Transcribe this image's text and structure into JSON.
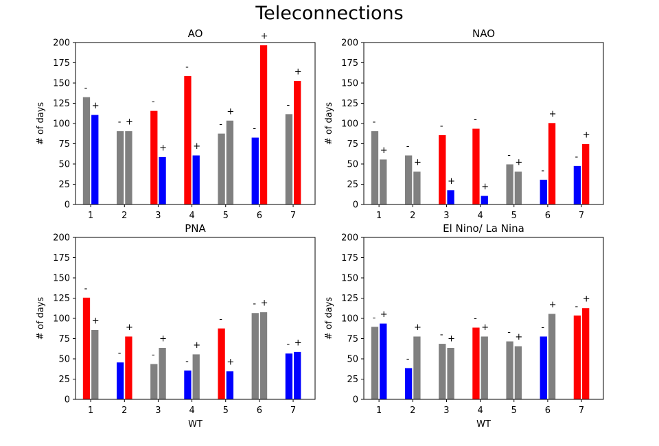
{
  "figure": {
    "title": "Teleconnections"
  },
  "colors": {
    "negative_phase": "#ff0000",
    "positive_phase": "#0000ff",
    "neutral": "#808080"
  },
  "chart_data": [
    {
      "type": "bar",
      "title": "AO",
      "xlabel": "",
      "ylabel": "# of days",
      "ylim": [
        0,
        200
      ],
      "yticks": [
        0,
        25,
        50,
        75,
        100,
        125,
        150,
        175,
        200
      ],
      "categories": [
        "1",
        "2",
        "3",
        "4",
        "5",
        "6",
        "7"
      ],
      "series": [
        {
          "values": [
            133,
            91,
            116,
            159,
            88,
            83,
            112
          ],
          "colors": [
            "gray",
            "gray",
            "red",
            "red",
            "gray",
            "blue",
            "gray"
          ],
          "labels": [
            "-",
            "-",
            "-",
            "-",
            "-",
            "-",
            "-"
          ]
        },
        {
          "values": [
            111,
            91,
            59,
            61,
            104,
            197,
            153
          ],
          "colors": [
            "blue",
            "gray",
            "blue",
            "blue",
            "gray",
            "red",
            "red"
          ],
          "labels": [
            "+",
            "+",
            "+",
            "+",
            "+",
            "+",
            "+"
          ]
        }
      ],
      "grid": false
    },
    {
      "type": "bar",
      "title": "NAO",
      "xlabel": "",
      "ylabel": "# of days",
      "ylim": [
        0,
        200
      ],
      "yticks": [
        0,
        25,
        50,
        75,
        100,
        125,
        150,
        175,
        200
      ],
      "categories": [
        "1",
        "2",
        "3",
        "4",
        "5",
        "6",
        "7"
      ],
      "series": [
        {
          "values": [
            91,
            61,
            86,
            94,
            50,
            31,
            48
          ],
          "colors": [
            "gray",
            "gray",
            "red",
            "red",
            "gray",
            "blue",
            "blue"
          ],
          "labels": [
            "-",
            "-",
            "-",
            "-",
            "-",
            "-",
            "-"
          ]
        },
        {
          "values": [
            56,
            41,
            18,
            11,
            41,
            101,
            75
          ],
          "colors": [
            "gray",
            "gray",
            "blue",
            "blue",
            "gray",
            "red",
            "red"
          ],
          "labels": [
            "+",
            "+",
            "+",
            "+",
            "+",
            "+",
            "+"
          ]
        }
      ],
      "grid": false
    },
    {
      "type": "bar",
      "title": "PNA",
      "xlabel": "WT",
      "ylabel": "# of days",
      "ylim": [
        0,
        200
      ],
      "yticks": [
        0,
        25,
        50,
        75,
        100,
        125,
        150,
        175,
        200
      ],
      "categories": [
        "1",
        "2",
        "3",
        "4",
        "5",
        "6",
        "7"
      ],
      "series": [
        {
          "values": [
            126,
            46,
            44,
            36,
            88,
            107,
            57
          ],
          "colors": [
            "red",
            "blue",
            "gray",
            "blue",
            "red",
            "gray",
            "blue"
          ],
          "labels": [
            "-",
            "-",
            "-",
            "-",
            "-",
            "-",
            "-"
          ]
        },
        {
          "values": [
            86,
            78,
            64,
            56,
            35,
            108,
            59
          ],
          "colors": [
            "gray",
            "red",
            "gray",
            "gray",
            "blue",
            "gray",
            "blue"
          ],
          "labels": [
            "+",
            "+",
            "+",
            "+",
            "+",
            "+",
            "+"
          ]
        }
      ],
      "grid": false
    },
    {
      "type": "bar",
      "title": "El Nino/ La Nina",
      "xlabel": "WT",
      "ylabel": "# of days",
      "ylim": [
        0,
        200
      ],
      "yticks": [
        0,
        25,
        50,
        75,
        100,
        125,
        150,
        175,
        200
      ],
      "categories": [
        "1",
        "2",
        "3",
        "4",
        "5",
        "6",
        "7"
      ],
      "series": [
        {
          "values": [
            90,
            39,
            69,
            89,
            72,
            78,
            104
          ],
          "colors": [
            "gray",
            "blue",
            "gray",
            "red",
            "gray",
            "blue",
            "red"
          ],
          "labels": [
            "-",
            "-",
            "-",
            "-",
            "-",
            "-",
            "-"
          ]
        },
        {
          "values": [
            94,
            78,
            64,
            78,
            66,
            106,
            113
          ],
          "colors": [
            "blue",
            "gray",
            "gray",
            "gray",
            "gray",
            "gray",
            "red"
          ],
          "labels": [
            "+",
            "+",
            "+",
            "+",
            "+",
            "+",
            "+"
          ]
        }
      ],
      "grid": false
    }
  ]
}
